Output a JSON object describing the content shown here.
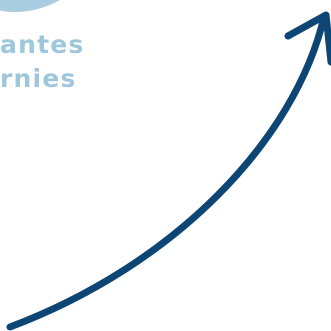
{
  "caption": {
    "lines": [
      "antes",
      "rnies"
    ]
  },
  "colors": {
    "arrow": "#0d4675",
    "decor_circle": "#a9cde0",
    "caption_text": "#9ec6dc",
    "background": "#ffffff"
  },
  "icons": {
    "arrow": "curved-arrow-up-right-icon",
    "circle": "decorative-circle-icon"
  }
}
